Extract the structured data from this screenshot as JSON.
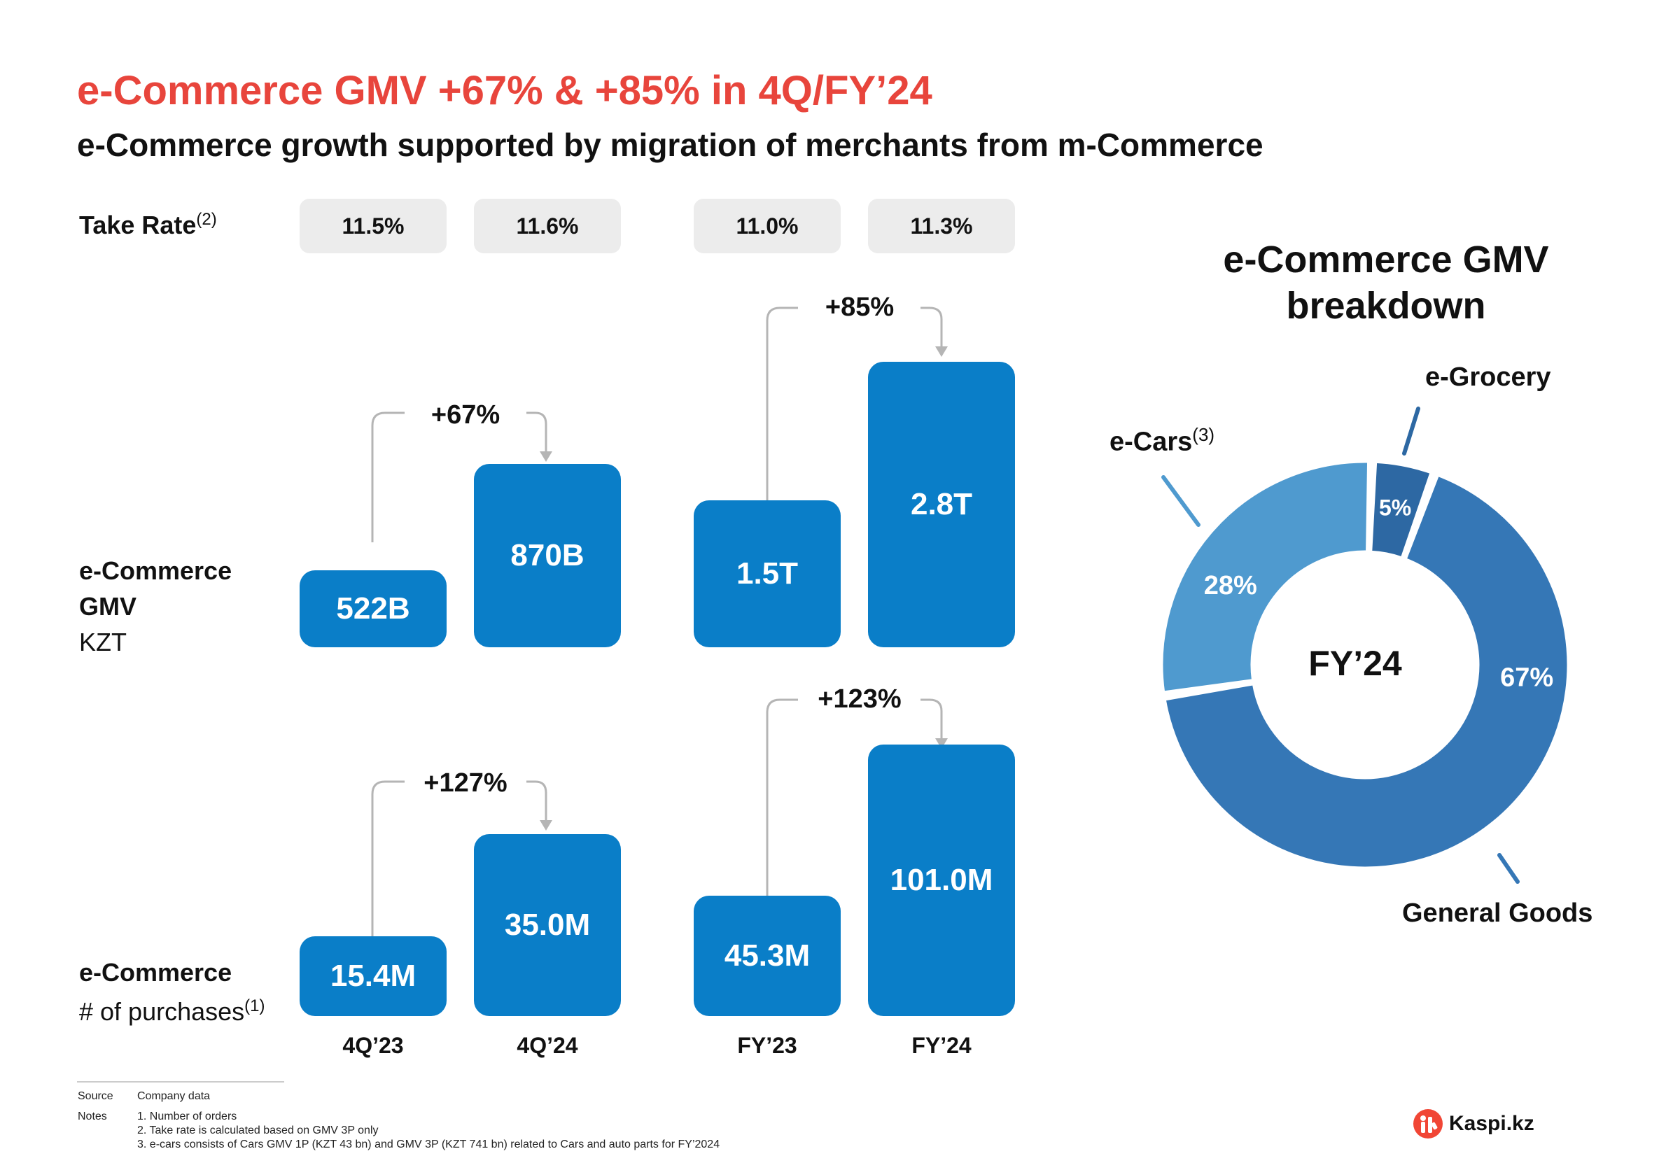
{
  "header": {
    "title": "e-Commerce GMV +67% & +85% in 4Q/FY’24",
    "subtitle": "e-Commerce growth supported by migration of merchants from m-Commerce"
  },
  "take_rate": {
    "label": "Take Rate",
    "sup": "(2)",
    "values": [
      "11.5%",
      "11.6%",
      "11.0%",
      "11.3%"
    ]
  },
  "gmv_row": {
    "label_line1": "e-Commerce",
    "label_line2": "GMV",
    "unit": "KZT"
  },
  "purchases_row": {
    "label_line1": "e-Commerce",
    "label_line2": "# of purchases",
    "sup": "(1)"
  },
  "chart_data": [
    {
      "type": "bar",
      "categories": [
        "4Q’23",
        "4Q’24",
        "FY’23",
        "FY’24"
      ],
      "values": [
        522,
        870,
        1500,
        2800
      ],
      "data_labels": [
        "522B",
        "870B",
        "1.5T",
        "2.8T"
      ],
      "growth_labels": [
        "+67%",
        "+85%"
      ]
    },
    {
      "type": "bar",
      "categories": [
        "4Q’23",
        "4Q’24",
        "FY’23",
        "FY’24"
      ],
      "values": [
        15.4,
        35.0,
        45.3,
        101.0
      ],
      "data_labels": [
        "15.4M",
        "35.0M",
        "45.3M",
        "101.0M"
      ],
      "growth_labels": [
        "+127%",
        "+123%"
      ]
    },
    {
      "type": "pie",
      "title": "e-Commerce GMV breakdown",
      "center_label": "FY’24",
      "slices": [
        {
          "name": "General Goods",
          "value": 67,
          "label": "67%",
          "color": "#3577b6"
        },
        {
          "name": "e-Cars",
          "sup": "(3)",
          "value": 28,
          "label": "28%",
          "color": "#4f9acf"
        },
        {
          "name": "e-Grocery",
          "value": 5,
          "label": "5%",
          "color": "#2d68a3"
        }
      ]
    }
  ],
  "colors": {
    "accent": "#e8453c",
    "bar": "#0a7ec8",
    "pill": "#ececec"
  },
  "footer": {
    "source_label": "Source",
    "source_text": "Company data",
    "notes_label": "Notes",
    "notes": [
      "1. Number of orders",
      "2. Take rate is calculated based on GMV 3P only",
      "3. e-cars consists of Cars GMV 1P (KZT 43 bn) and GMV 3P (KZT 741 bn) related to Cars and auto parts for FY’2024"
    ]
  },
  "logo": {
    "text": "Kaspi.kz",
    "icon": "kaspi-logo-icon"
  }
}
